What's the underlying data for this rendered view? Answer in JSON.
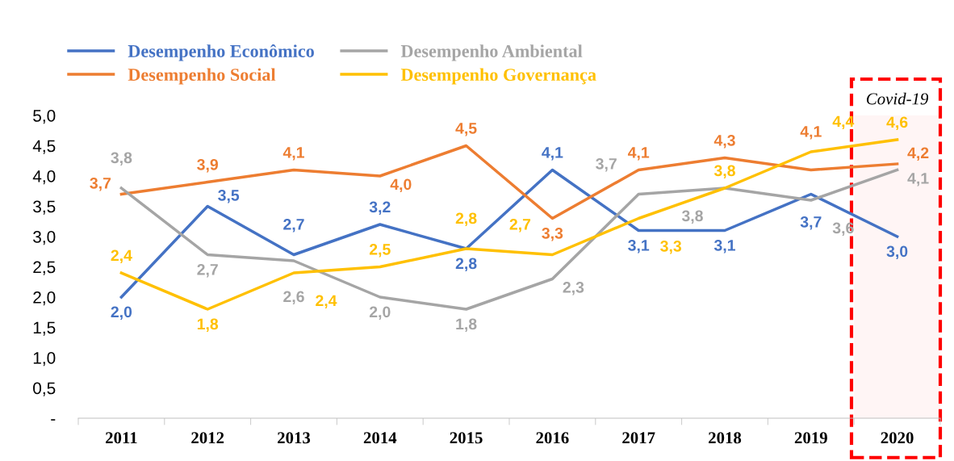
{
  "chart_data": {
    "type": "line",
    "categories": [
      "2011",
      "2012",
      "2013",
      "2014",
      "2015",
      "2016",
      "2017",
      "2018",
      "2019",
      "2020"
    ],
    "series": [
      {
        "name": "Desempenho Econômico",
        "color": "#4472c4",
        "values": [
          2.0,
          3.5,
          2.7,
          3.2,
          2.8,
          4.1,
          3.1,
          3.1,
          3.7,
          3.0
        ],
        "value_labels": [
          "2,0",
          "3,5",
          "2,7",
          "3,2",
          "2,8",
          "4,1",
          "3,1",
          "3,1",
          "3,7",
          "3,0"
        ]
      },
      {
        "name": "Desempenho Social",
        "color": "#ed7d31",
        "values": [
          3.7,
          3.9,
          4.1,
          4.0,
          4.5,
          3.3,
          4.1,
          4.3,
          4.1,
          4.2
        ],
        "value_labels": [
          "3,7",
          "3,9",
          "4,1",
          "4,0",
          "4,5",
          "3,3",
          "4,1",
          "4,3",
          "4,1",
          "4,2"
        ]
      },
      {
        "name": "Desempenho Ambiental",
        "color": "#a5a5a5",
        "values": [
          3.8,
          2.7,
          2.6,
          2.0,
          1.8,
          2.3,
          3.7,
          3.8,
          3.6,
          4.1
        ],
        "value_labels": [
          "3,8",
          "2,7",
          "2,6",
          "2,0",
          "1,8",
          "2,3",
          "3,7",
          "3,8",
          "3,6",
          "4,1"
        ]
      },
      {
        "name": "Desempenho Governança",
        "color": "#ffc000",
        "values": [
          2.4,
          1.8,
          2.4,
          2.5,
          2.8,
          2.7,
          3.3,
          3.8,
          4.4,
          4.6
        ],
        "value_labels": [
          "2,4",
          "1,8",
          "2,4",
          "2,5",
          "2,8",
          "2,7",
          "3,3",
          "3,8",
          "4,4",
          "4,6"
        ]
      }
    ],
    "ylim": [
      0,
      5
    ],
    "yticks": [
      {
        "value": 0,
        "label": "-"
      },
      {
        "value": 0.5,
        "label": "0,5"
      },
      {
        "value": 1,
        "label": "1,0"
      },
      {
        "value": 1.5,
        "label": "1,5"
      },
      {
        "value": 2,
        "label": "2,0"
      },
      {
        "value": 2.5,
        "label": "2,5"
      },
      {
        "value": 3,
        "label": "3,0"
      },
      {
        "value": 3.5,
        "label": "3,5"
      },
      {
        "value": 4,
        "label": "4,0"
      },
      {
        "value": 4.5,
        "label": "4,5"
      },
      {
        "value": 5,
        "label": "5,0"
      }
    ],
    "bands": [
      {
        "axis": "x",
        "from": "2020",
        "to": "2020",
        "label": "Covid-19",
        "color": "#ff0000"
      }
    ],
    "legend": "top left",
    "grid": false,
    "marker": "none",
    "line_style": "solid"
  }
}
